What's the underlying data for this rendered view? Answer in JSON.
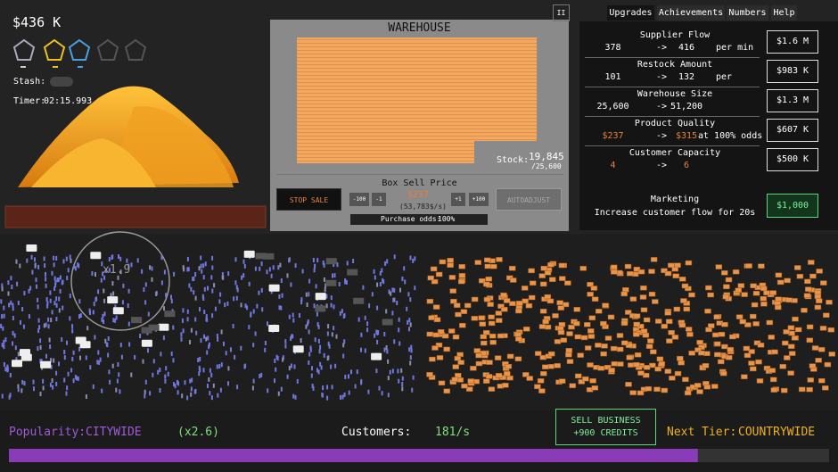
{
  "header": {
    "money": "$436 K",
    "stash_label": "Stash:",
    "timer_label": "Timer:",
    "timer": "02:15.993"
  },
  "warehouse": {
    "title": "WAREHOUSE",
    "stock_label": "Stock:",
    "stock": "19,845",
    "capacity": "/25,600",
    "sell_price_label": "Box Sell Price",
    "stop_sale": "STOP SALE",
    "minus100": "-100",
    "minus1": "-1",
    "price": "$237",
    "rate": "(53,783$/s)",
    "plus1": "+1",
    "plus100": "+100",
    "autoadjust": "AUTOADJUST",
    "odds_label": "Purchase odds:",
    "odds": "100%"
  },
  "pause": "II",
  "tabs": [
    "Upgrades",
    "Achievements",
    "Numbers",
    "Help"
  ],
  "upgrades": [
    {
      "name": "Supplier Flow",
      "from": "378",
      "arrow": "->",
      "to": "416",
      "suffix": "per min",
      "cost": "$1.6 M"
    },
    {
      "name": "Restock Amount",
      "from": "101",
      "arrow": "->",
      "to": "132",
      "suffix": "per",
      "cost": "$983 K"
    },
    {
      "name": "Warehouse Size",
      "from": "25,600",
      "arrow": "->",
      "to": "51,200",
      "cost": "$1.3 M"
    },
    {
      "name": "Product Quality",
      "from": "$237",
      "arrow": "->",
      "to": "$315",
      "suffix": "at 100% odds",
      "cost": "$607 K"
    },
    {
      "name": "Customer Capacity",
      "from": "4",
      "arrow": "->",
      "to": "6",
      "cost": "$500 K"
    }
  ],
  "marketing": {
    "name": "Marketing",
    "description": "Increase customer flow for 20s",
    "cost": "$1,000"
  },
  "street": {
    "multiplier": "x1.9"
  },
  "footer": {
    "popularity_label": "Popularity:",
    "popularity": "CITYWIDE",
    "bonus": "(x2.6)",
    "customers_label": "Customers:",
    "customers": "181/s",
    "sell_line1": "SELL BUSINESS",
    "sell_line2": "+900 CREDITS",
    "next_label": "Next Tier:",
    "next_tier": "COUNTRYWIDE",
    "progress": 84
  }
}
